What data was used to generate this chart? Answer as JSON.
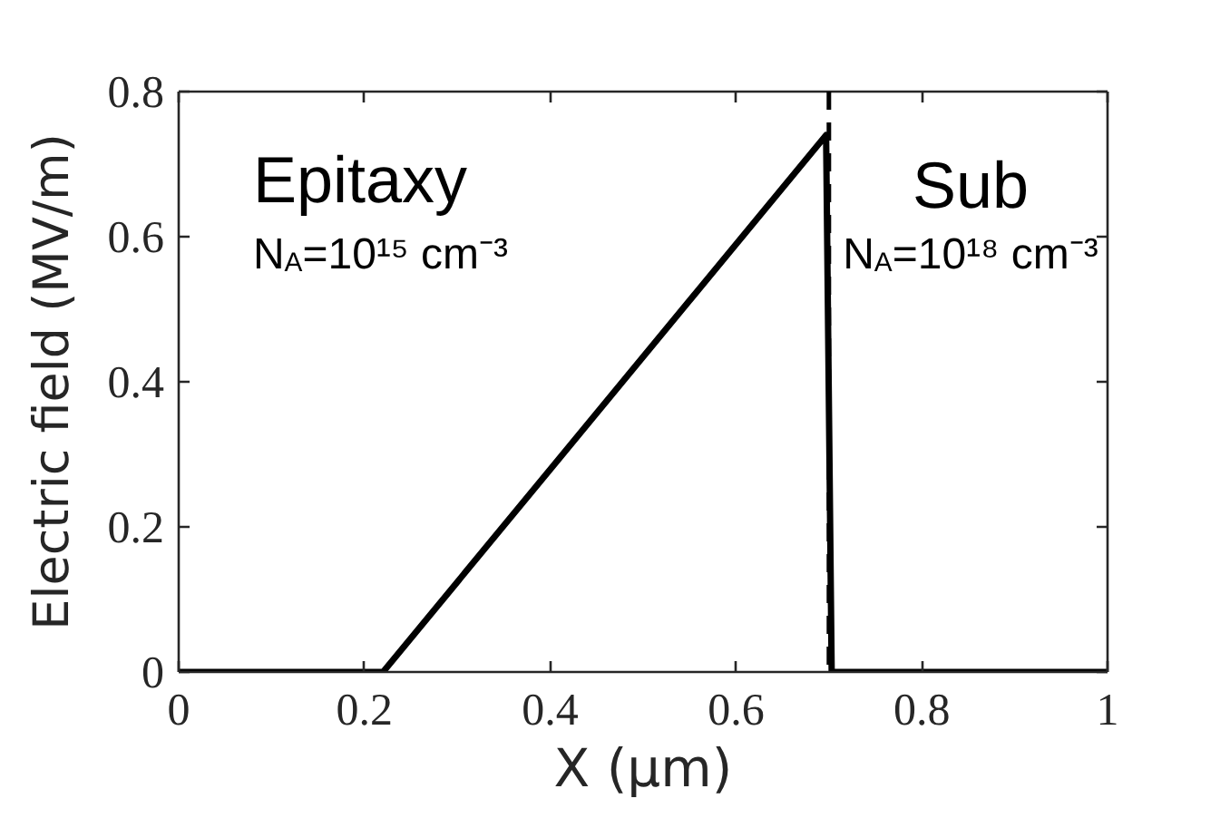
{
  "chart_data": {
    "type": "line",
    "xlabel": "X (μm)",
    "ylabel": "Electric field (MV/m)",
    "x": [
      0,
      0.22,
      0.697,
      0.703,
      1
    ],
    "values": [
      0,
      0,
      0.74,
      0,
      0
    ],
    "color": "#000000",
    "xlim": [
      0,
      1
    ],
    "ylim": [
      0,
      0.8
    ],
    "xticks": [
      0,
      0.2,
      0.4,
      0.6,
      0.8,
      1
    ],
    "yticks": [
      0,
      0.2,
      0.4,
      0.6,
      0.8
    ],
    "ref_lines": [
      {
        "axis": "x",
        "value": 0.7,
        "color": "#000000",
        "line_style": "dashed"
      }
    ],
    "annotations": [
      "Epitaxy",
      "N$_{A}$=10¹⁵ cm⁻³",
      "Sub",
      "N$_{A}$=10¹⁸ cm⁻³"
    ]
  }
}
